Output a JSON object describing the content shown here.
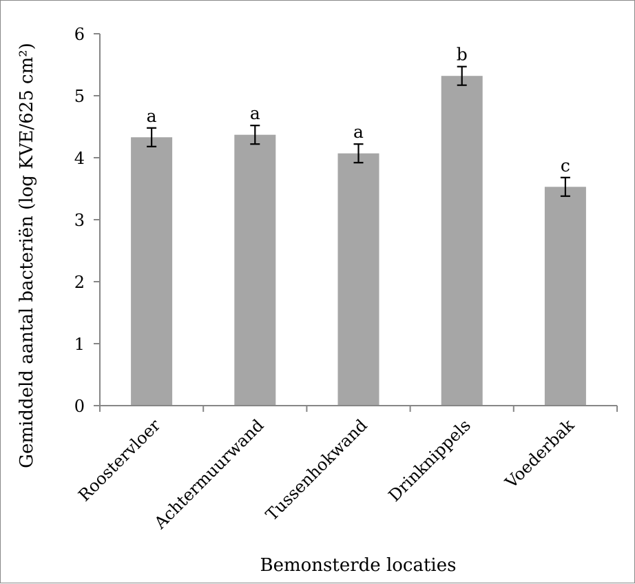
{
  "chart_data": {
    "type": "bar",
    "title": "",
    "xlabel": "Bemonsterde locaties",
    "ylabel": "Gemiddeld aantal bacteriën (log KVE/625 cm²)",
    "ylim": [
      0,
      6
    ],
    "yticks": [
      0,
      1,
      2,
      3,
      4,
      5,
      6
    ],
    "grid": false,
    "legend": "none",
    "categories": [
      "Roostervloer",
      "Achtermuurwand",
      "Tussenhokwand",
      "Drinknippels",
      "Voederbak"
    ],
    "values": [
      4.33,
      4.37,
      4.07,
      5.32,
      3.53
    ],
    "error": [
      0.15,
      0.15,
      0.15,
      0.15,
      0.15
    ],
    "significance_letters": [
      "a",
      "a",
      "a",
      "b",
      "c"
    ],
    "colors": {
      "bar": "#a6a6a6",
      "axis": "#868686",
      "error_bar": "#000000"
    }
  }
}
